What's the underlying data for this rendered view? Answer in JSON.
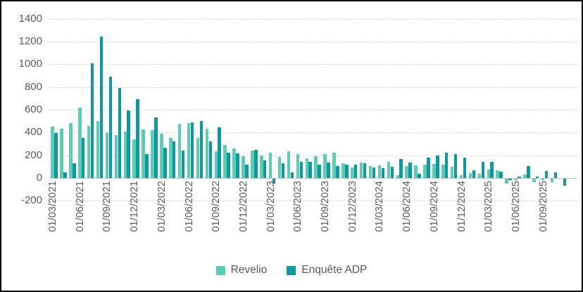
{
  "chart_data": {
    "type": "bar",
    "title": "",
    "grid": "horizontal",
    "legend_position": "bottom",
    "y_ticks": [
      -200,
      0,
      200,
      400,
      600,
      800,
      1000,
      1200,
      1400
    ],
    "ylim": [
      -200,
      1400
    ],
    "x_label_every": 3,
    "x_tick_labels": [
      "01/03/2021",
      "01/06/2021",
      "01/09/2021",
      "01/12/2021",
      "01/03/2022",
      "01/06/2022",
      "01/09/2022",
      "01/12/2022",
      "01/03/2023",
      "01/06/2023",
      "01/09/2023",
      "01/12/2023",
      "01/03/2024",
      "01/06/2024",
      "01/09/2024",
      "01/12/2024",
      "01/03/2025",
      "01/06/2025",
      "01/09/2025"
    ],
    "categories": [
      "01/03/2021",
      "01/04/2021",
      "01/05/2021",
      "01/06/2021",
      "01/07/2021",
      "01/08/2021",
      "01/09/2021",
      "01/10/2021",
      "01/11/2021",
      "01/12/2021",
      "01/01/2022",
      "01/02/2022",
      "01/03/2022",
      "01/04/2022",
      "01/05/2022",
      "01/06/2022",
      "01/07/2022",
      "01/08/2022",
      "01/09/2022",
      "01/10/2022",
      "01/11/2022",
      "01/12/2022",
      "01/01/2023",
      "01/02/2023",
      "01/03/2023",
      "01/04/2023",
      "01/05/2023",
      "01/06/2023",
      "01/07/2023",
      "01/08/2023",
      "01/09/2023",
      "01/10/2023",
      "01/11/2023",
      "01/12/2023",
      "01/01/2024",
      "01/02/2024",
      "01/03/2024",
      "01/04/2024",
      "01/05/2024",
      "01/06/2024",
      "01/07/2024",
      "01/08/2024",
      "01/09/2024",
      "01/10/2024",
      "01/11/2024",
      "01/12/2024",
      "01/01/2025",
      "01/02/2025",
      "01/03/2025",
      "01/04/2025",
      "01/05/2025",
      "01/06/2025",
      "01/07/2025",
      "01/08/2025",
      "01/09/2025",
      "01/10/2025",
      "01/11/2025"
    ],
    "series": [
      {
        "name": "Revelio",
        "color": "#5CCDB5",
        "values": [
          450,
          435,
          485,
          620,
          455,
          500,
          395,
          380,
          410,
          340,
          425,
          420,
          390,
          355,
          475,
          480,
          355,
          435,
          235,
          290,
          260,
          190,
          240,
          195,
          220,
          185,
          235,
          210,
          175,
          190,
          210,
          225,
          130,
          95,
          135,
          105,
          110,
          140,
          25,
          105,
          110,
          120,
          125,
          115,
          100,
          25,
          45,
          35,
          75,
          70,
          -40,
          -10,
          30,
          -30,
          -10,
          -30,
          0
        ]
      },
      {
        "name": "Enquête ADP",
        "color": "#0E99A1",
        "values": [
          395,
          50,
          130,
          350,
          1010,
          1245,
          890,
          790,
          595,
          695,
          210,
          530,
          265,
          320,
          240,
          490,
          500,
          320,
          445,
          220,
          215,
          120,
          245,
          155,
          -40,
          130,
          50,
          145,
          140,
          120,
          135,
          105,
          120,
          115,
          130,
          95,
          85,
          100,
          165,
          135,
          40,
          180,
          195,
          220,
          210,
          182,
          70,
          140,
          145,
          55,
          -15,
          15,
          105,
          15,
          60,
          50,
          -60
        ]
      }
    ],
    "colors": {
      "gridline": "#D9D9D9",
      "axis_line": "#C2C2C2",
      "tick_text": "#595959"
    }
  }
}
